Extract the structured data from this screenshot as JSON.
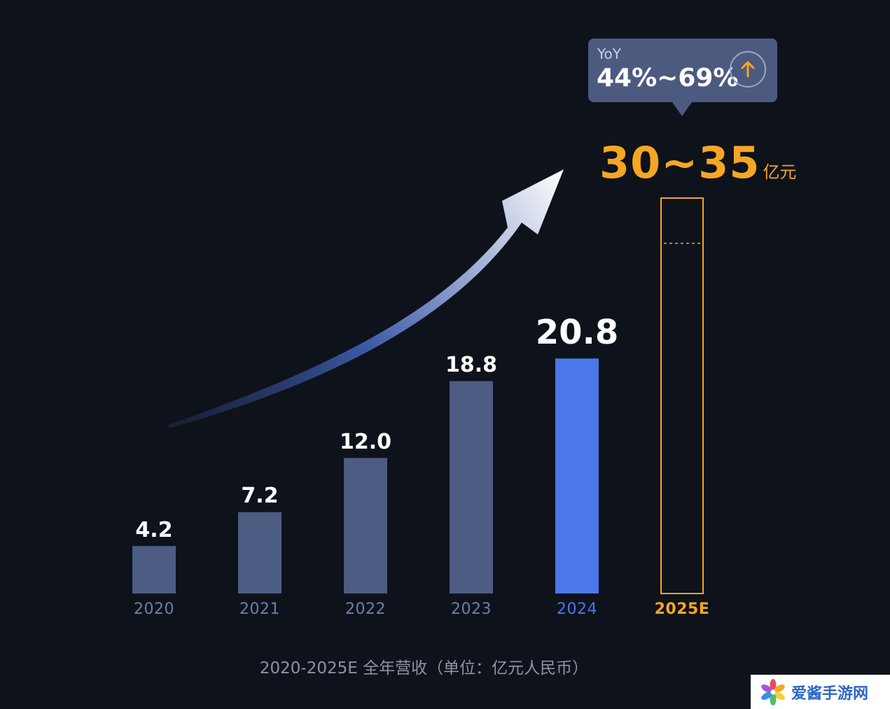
{
  "chart_data": {
    "type": "bar",
    "categories": [
      "2020",
      "2021",
      "2022",
      "2023",
      "2024",
      "2025E"
    ],
    "values": [
      4.2,
      7.2,
      12.0,
      18.8,
      20.8,
      null
    ],
    "value_labels": [
      "4.2",
      "7.2",
      "12.0",
      "18.8",
      "20.8",
      ""
    ],
    "forecast": {
      "category": "2025E",
      "low": 30,
      "high": 35,
      "label": "30~35",
      "unit": "亿元"
    },
    "yoy": {
      "title": "YoY",
      "value": "44%~69%"
    },
    "caption": "2020-2025E 全年营收（单位：亿元人民币）",
    "ylim": [
      0,
      38
    ],
    "grid": false,
    "legend": "none",
    "colors": {
      "bar": "#4d5c82",
      "highlight": "#4a78e8",
      "forecast": "#f5a623",
      "year_label": "#6f7fa6",
      "background": "#0e121b"
    }
  },
  "watermark": {
    "text": "爱酱手游网",
    "logo": "flower-logo"
  }
}
